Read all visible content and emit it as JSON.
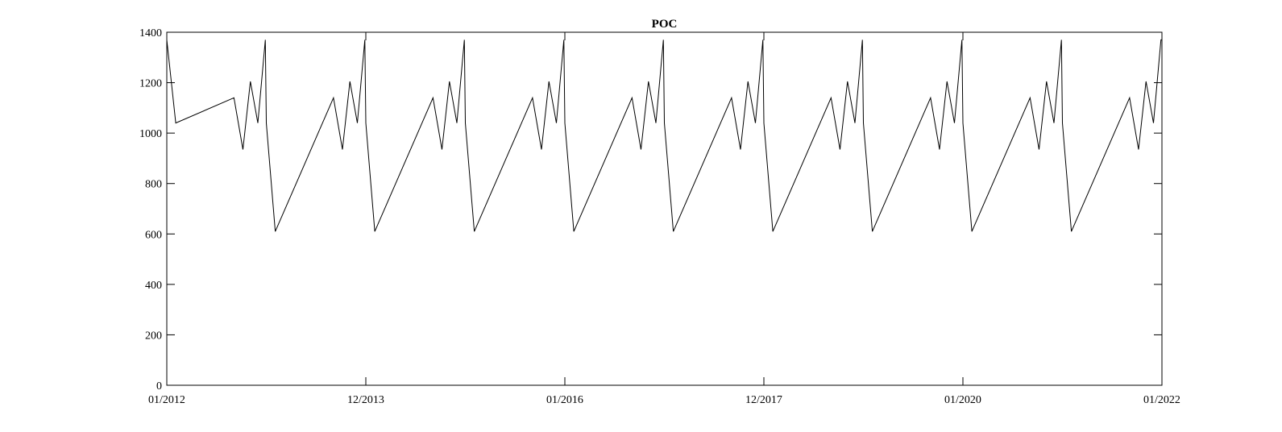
{
  "chart_data": {
    "type": "line",
    "title": "POC",
    "xlabel": "",
    "ylabel": "",
    "ylim": [
      0,
      1400
    ],
    "yticks": [
      0,
      200,
      400,
      600,
      800,
      1000,
      1200,
      1400
    ],
    "xlim": [
      2012.0,
      2022.0
    ],
    "xticks": [
      {
        "value": 2012.0,
        "label": "01/2012"
      },
      {
        "value": 2014.0,
        "label": "12/2013"
      },
      {
        "value": 2016.0,
        "label": "01/2016"
      },
      {
        "value": 2018.0,
        "label": "12/2017"
      },
      {
        "value": 2020.0,
        "label": "01/2020"
      },
      {
        "value": 2022.0,
        "label": "01/2022"
      }
    ],
    "grid": false,
    "period_years": 1.0,
    "cycle_pattern": {
      "t": [
        0.0,
        0.09,
        0.675,
        0.765,
        0.84,
        0.915,
        0.99
      ],
      "y": [
        1040,
        610,
        1140,
        935,
        1205,
        1040,
        1370
      ]
    },
    "series": [
      {
        "color": "#000000",
        "x": [
          2012.0,
          2012.09
        ],
        "y": [
          1370,
          1040
        ]
      }
    ]
  }
}
